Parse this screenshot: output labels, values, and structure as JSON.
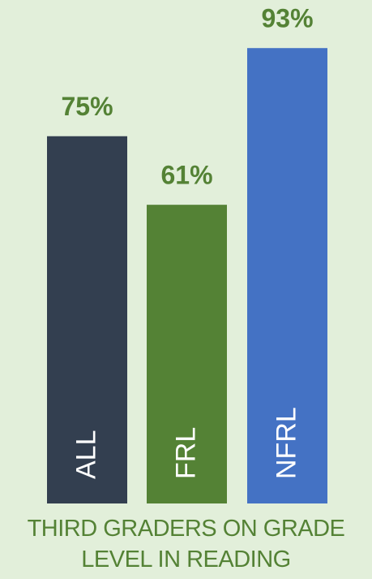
{
  "chart_data": {
    "type": "bar",
    "title": "THIRD GRADERS ON GRADE LEVEL IN READING",
    "categories": [
      "ALL",
      "FRL",
      "NFRL"
    ],
    "values": [
      75,
      61,
      93
    ],
    "value_labels": [
      "75%",
      "61%",
      "93%"
    ],
    "colors": [
      "#333f50",
      "#548235",
      "#4472c4"
    ],
    "ylim": [
      0,
      100
    ]
  }
}
